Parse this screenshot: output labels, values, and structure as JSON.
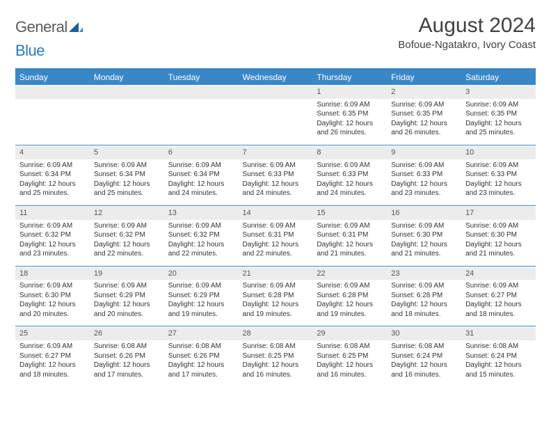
{
  "brand": {
    "part1": "General",
    "part2": "Blue"
  },
  "title": "August 2024",
  "location": "Bofoue-Ngatakro, Ivory Coast",
  "colors": {
    "accent": "#3a87c7",
    "header_bg": "#3a87c7",
    "header_text": "#ffffff",
    "daynum_bg": "#ececec",
    "text": "#333333",
    "logo_gray": "#5a5a5a",
    "logo_blue": "#2b7bbf"
  },
  "typography": {
    "title_fontsize": 30,
    "location_fontsize": 15,
    "weekday_fontsize": 12,
    "daynum_fontsize": 11,
    "body_fontsize": 10
  },
  "weekdays": [
    "Sunday",
    "Monday",
    "Tuesday",
    "Wednesday",
    "Thursday",
    "Friday",
    "Saturday"
  ],
  "weeks": [
    [
      null,
      null,
      null,
      null,
      {
        "n": "1",
        "sr": "Sunrise: 6:09 AM",
        "ss": "Sunset: 6:35 PM",
        "d1": "Daylight: 12 hours",
        "d2": "and 26 minutes."
      },
      {
        "n": "2",
        "sr": "Sunrise: 6:09 AM",
        "ss": "Sunset: 6:35 PM",
        "d1": "Daylight: 12 hours",
        "d2": "and 26 minutes."
      },
      {
        "n": "3",
        "sr": "Sunrise: 6:09 AM",
        "ss": "Sunset: 6:35 PM",
        "d1": "Daylight: 12 hours",
        "d2": "and 25 minutes."
      }
    ],
    [
      {
        "n": "4",
        "sr": "Sunrise: 6:09 AM",
        "ss": "Sunset: 6:34 PM",
        "d1": "Daylight: 12 hours",
        "d2": "and 25 minutes."
      },
      {
        "n": "5",
        "sr": "Sunrise: 6:09 AM",
        "ss": "Sunset: 6:34 PM",
        "d1": "Daylight: 12 hours",
        "d2": "and 25 minutes."
      },
      {
        "n": "6",
        "sr": "Sunrise: 6:09 AM",
        "ss": "Sunset: 6:34 PM",
        "d1": "Daylight: 12 hours",
        "d2": "and 24 minutes."
      },
      {
        "n": "7",
        "sr": "Sunrise: 6:09 AM",
        "ss": "Sunset: 6:33 PM",
        "d1": "Daylight: 12 hours",
        "d2": "and 24 minutes."
      },
      {
        "n": "8",
        "sr": "Sunrise: 6:09 AM",
        "ss": "Sunset: 6:33 PM",
        "d1": "Daylight: 12 hours",
        "d2": "and 24 minutes."
      },
      {
        "n": "9",
        "sr": "Sunrise: 6:09 AM",
        "ss": "Sunset: 6:33 PM",
        "d1": "Daylight: 12 hours",
        "d2": "and 23 minutes."
      },
      {
        "n": "10",
        "sr": "Sunrise: 6:09 AM",
        "ss": "Sunset: 6:33 PM",
        "d1": "Daylight: 12 hours",
        "d2": "and 23 minutes."
      }
    ],
    [
      {
        "n": "11",
        "sr": "Sunrise: 6:09 AM",
        "ss": "Sunset: 6:32 PM",
        "d1": "Daylight: 12 hours",
        "d2": "and 23 minutes."
      },
      {
        "n": "12",
        "sr": "Sunrise: 6:09 AM",
        "ss": "Sunset: 6:32 PM",
        "d1": "Daylight: 12 hours",
        "d2": "and 22 minutes."
      },
      {
        "n": "13",
        "sr": "Sunrise: 6:09 AM",
        "ss": "Sunset: 6:32 PM",
        "d1": "Daylight: 12 hours",
        "d2": "and 22 minutes."
      },
      {
        "n": "14",
        "sr": "Sunrise: 6:09 AM",
        "ss": "Sunset: 6:31 PM",
        "d1": "Daylight: 12 hours",
        "d2": "and 22 minutes."
      },
      {
        "n": "15",
        "sr": "Sunrise: 6:09 AM",
        "ss": "Sunset: 6:31 PM",
        "d1": "Daylight: 12 hours",
        "d2": "and 21 minutes."
      },
      {
        "n": "16",
        "sr": "Sunrise: 6:09 AM",
        "ss": "Sunset: 6:30 PM",
        "d1": "Daylight: 12 hours",
        "d2": "and 21 minutes."
      },
      {
        "n": "17",
        "sr": "Sunrise: 6:09 AM",
        "ss": "Sunset: 6:30 PM",
        "d1": "Daylight: 12 hours",
        "d2": "and 21 minutes."
      }
    ],
    [
      {
        "n": "18",
        "sr": "Sunrise: 6:09 AM",
        "ss": "Sunset: 6:30 PM",
        "d1": "Daylight: 12 hours",
        "d2": "and 20 minutes."
      },
      {
        "n": "19",
        "sr": "Sunrise: 6:09 AM",
        "ss": "Sunset: 6:29 PM",
        "d1": "Daylight: 12 hours",
        "d2": "and 20 minutes."
      },
      {
        "n": "20",
        "sr": "Sunrise: 6:09 AM",
        "ss": "Sunset: 6:29 PM",
        "d1": "Daylight: 12 hours",
        "d2": "and 19 minutes."
      },
      {
        "n": "21",
        "sr": "Sunrise: 6:09 AM",
        "ss": "Sunset: 6:28 PM",
        "d1": "Daylight: 12 hours",
        "d2": "and 19 minutes."
      },
      {
        "n": "22",
        "sr": "Sunrise: 6:09 AM",
        "ss": "Sunset: 6:28 PM",
        "d1": "Daylight: 12 hours",
        "d2": "and 19 minutes."
      },
      {
        "n": "23",
        "sr": "Sunrise: 6:09 AM",
        "ss": "Sunset: 6:28 PM",
        "d1": "Daylight: 12 hours",
        "d2": "and 18 minutes."
      },
      {
        "n": "24",
        "sr": "Sunrise: 6:09 AM",
        "ss": "Sunset: 6:27 PM",
        "d1": "Daylight: 12 hours",
        "d2": "and 18 minutes."
      }
    ],
    [
      {
        "n": "25",
        "sr": "Sunrise: 6:09 AM",
        "ss": "Sunset: 6:27 PM",
        "d1": "Daylight: 12 hours",
        "d2": "and 18 minutes."
      },
      {
        "n": "26",
        "sr": "Sunrise: 6:08 AM",
        "ss": "Sunset: 6:26 PM",
        "d1": "Daylight: 12 hours",
        "d2": "and 17 minutes."
      },
      {
        "n": "27",
        "sr": "Sunrise: 6:08 AM",
        "ss": "Sunset: 6:26 PM",
        "d1": "Daylight: 12 hours",
        "d2": "and 17 minutes."
      },
      {
        "n": "28",
        "sr": "Sunrise: 6:08 AM",
        "ss": "Sunset: 6:25 PM",
        "d1": "Daylight: 12 hours",
        "d2": "and 16 minutes."
      },
      {
        "n": "29",
        "sr": "Sunrise: 6:08 AM",
        "ss": "Sunset: 6:25 PM",
        "d1": "Daylight: 12 hours",
        "d2": "and 16 minutes."
      },
      {
        "n": "30",
        "sr": "Sunrise: 6:08 AM",
        "ss": "Sunset: 6:24 PM",
        "d1": "Daylight: 12 hours",
        "d2": "and 16 minutes."
      },
      {
        "n": "31",
        "sr": "Sunrise: 6:08 AM",
        "ss": "Sunset: 6:24 PM",
        "d1": "Daylight: 12 hours",
        "d2": "and 15 minutes."
      }
    ]
  ]
}
